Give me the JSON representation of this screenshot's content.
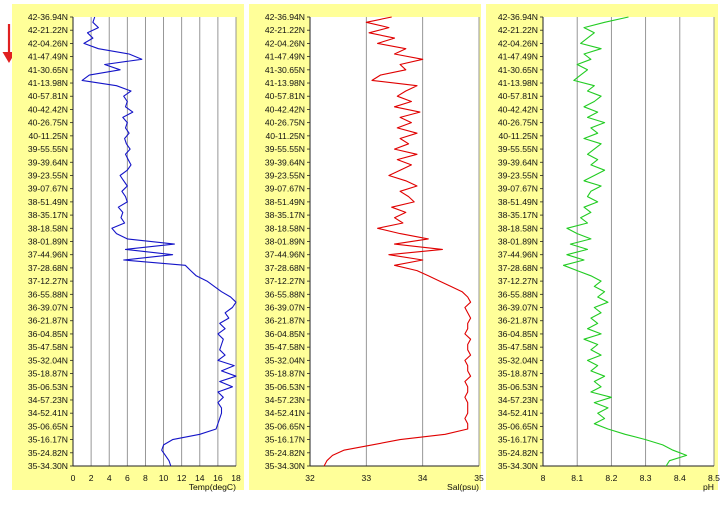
{
  "colors": {
    "panel_background": "#ffff99",
    "grid": "#8c8c8c",
    "arrow": "#e02020",
    "temperature": "#1414c8",
    "salinity": "#e00000",
    "ph": "#22cc22"
  },
  "arrow_icon": "arrow-down-icon",
  "chart_data": [
    {
      "type": "line",
      "orientation": "vertical-profile",
      "xlabel": "Temp(degC)",
      "xlim": [
        0,
        18
      ],
      "xticks": [
        "0",
        "2",
        "4",
        "6",
        "8",
        "10",
        "12",
        "14",
        "16",
        "18"
      ],
      "grid": true,
      "y_tick_labels": [
        "42-36.94N",
        "42-21.22N",
        "42-04.26N",
        "41-47.49N",
        "41-30.65N",
        "41-13.98N",
        "40-57.81N",
        "40-42.42N",
        "40-26.75N",
        "40-11.25N",
        "39-55.55N",
        "39-39.64N",
        "39-23.55N",
        "39-07.67N",
        "38-51.49N",
        "38-35.17N",
        "38-18.58N",
        "38-01.89N",
        "37-44.96N",
        "37-28.68N",
        "37-12.27N",
        "36-55.88N",
        "36-39.07N",
        "36-21.87N",
        "36-04.85N",
        "35-47.58N",
        "35-32.04N",
        "35-18.87N",
        "35-06.53N",
        "34-57.23N",
        "34-52.41N",
        "35-06.65N",
        "35-16.17N",
        "35-24.82N",
        "35-34.30N"
      ],
      "series": [
        {
          "y": [
            0.0,
            0.4,
            0.8,
            1.2,
            1.6,
            2.0,
            2.4,
            2.8,
            3.2,
            3.6,
            4.0,
            4.4,
            4.8,
            5.2,
            5.6,
            6.0,
            6.4,
            6.8,
            7.2,
            7.6,
            8.0,
            8.4,
            8.8,
            9.2,
            9.6,
            10.0,
            10.4,
            10.8,
            11.2,
            11.6,
            12.0,
            12.4,
            12.8,
            13.2,
            13.6,
            14.0,
            14.4,
            14.8,
            15.2,
            15.6,
            16.0,
            16.4,
            16.8,
            17.2,
            17.6,
            18.0,
            18.4,
            18.8,
            19.2,
            19.6,
            20.0,
            20.4,
            20.8,
            21.2,
            21.6,
            22.0,
            22.4,
            22.8,
            23.2,
            23.6,
            24.0,
            24.4,
            24.8,
            25.2,
            25.6,
            26.0,
            26.4,
            26.8,
            27.2,
            27.6,
            28.0,
            28.4,
            28.8,
            29.2,
            29.6,
            30.0,
            30.4,
            30.8,
            31.2,
            31.6,
            32.0,
            32.4,
            32.8,
            33.2,
            33.6,
            34.0
          ],
          "values": [
            2.4,
            2.2,
            2.8,
            1.6,
            2.2,
            1.2,
            2.8,
            6.2,
            7.6,
            3.5,
            5.2,
            1.8,
            1.0,
            4.8,
            6.4,
            5.6,
            6.0,
            5.8,
            6.6,
            5.5,
            6.0,
            5.8,
            6.2,
            5.7,
            5.9,
            6.3,
            5.8,
            6.1,
            6.4,
            6.0,
            5.2,
            5.6,
            6.0,
            5.4,
            5.8,
            6.0,
            5.0,
            5.5,
            5.3,
            5.7,
            4.3,
            4.8,
            6.0,
            11.2,
            5.8,
            11.0,
            5.6,
            12.4,
            13.0,
            13.6,
            14.8,
            15.6,
            16.4,
            17.4,
            18.0,
            17.6,
            16.8,
            17.2,
            16.2,
            16.8,
            16.0,
            16.6,
            16.4,
            16.2,
            16.8,
            16.0,
            17.8,
            16.4,
            18.0,
            16.2,
            17.6,
            16.0,
            16.6,
            16.0,
            16.4,
            16.4,
            16.2,
            16.0,
            15.8,
            14.0,
            11.0,
            10.0,
            9.8,
            10.2,
            10.6,
            10.8
          ]
        }
      ]
    },
    {
      "type": "line",
      "orientation": "vertical-profile",
      "xlabel": "Sal(psu)",
      "xlim": [
        32,
        35
      ],
      "xticks": [
        "32",
        "33",
        "34",
        "35"
      ],
      "grid": true,
      "y_tick_labels": [
        "42-36.94N",
        "42-21.22N",
        "42-04.26N",
        "41-47.49N",
        "41-30.65N",
        "41-13.98N",
        "40-57.81N",
        "40-42.42N",
        "40-26.75N",
        "40-11.25N",
        "39-55.55N",
        "39-39.64N",
        "39-23.55N",
        "39-07.67N",
        "38-51.49N",
        "38-35.17N",
        "38-18.58N",
        "38-01.89N",
        "37-44.96N",
        "37-28.68N",
        "37-12.27N",
        "36-55.88N",
        "36-39.07N",
        "36-21.87N",
        "36-04.85N",
        "35-47.58N",
        "35-32.04N",
        "35-18.87N",
        "35-06.53N",
        "34-57.23N",
        "34-52.41N",
        "35-06.65N",
        "35-16.17N",
        "35-24.82N",
        "35-34.30N"
      ],
      "series": [
        {
          "y": [
            0.0,
            0.4,
            0.8,
            1.2,
            1.6,
            2.0,
            2.4,
            2.8,
            3.2,
            3.6,
            4.0,
            4.4,
            4.8,
            5.2,
            5.6,
            6.0,
            6.4,
            6.8,
            7.2,
            7.6,
            8.0,
            8.4,
            8.8,
            9.2,
            9.6,
            10.0,
            10.4,
            10.8,
            11.2,
            11.6,
            12.0,
            12.4,
            12.8,
            13.2,
            13.6,
            14.0,
            14.4,
            14.8,
            15.2,
            15.6,
            16.0,
            16.4,
            16.8,
            17.2,
            17.6,
            18.0,
            18.4,
            18.8,
            19.2,
            19.6,
            20.0,
            20.4,
            20.8,
            21.2,
            21.6,
            22.0,
            22.4,
            22.8,
            23.2,
            23.6,
            24.0,
            24.4,
            24.8,
            25.2,
            25.6,
            26.0,
            26.4,
            26.8,
            27.2,
            27.6,
            28.0,
            28.4,
            28.8,
            29.2,
            29.6,
            30.0,
            30.4,
            30.8,
            31.2,
            31.6,
            32.0,
            32.4,
            32.8,
            33.2,
            33.6,
            34.0
          ],
          "values": [
            33.45,
            33.0,
            33.4,
            33.05,
            33.5,
            33.2,
            33.7,
            33.5,
            34.0,
            33.6,
            33.7,
            33.25,
            33.1,
            33.9,
            33.7,
            33.55,
            33.8,
            33.5,
            33.95,
            33.6,
            33.8,
            33.55,
            33.9,
            33.6,
            33.75,
            33.5,
            33.9,
            33.55,
            33.8,
            33.6,
            33.4,
            33.7,
            33.9,
            33.6,
            33.75,
            33.85,
            33.45,
            33.7,
            33.5,
            33.65,
            33.2,
            33.6,
            34.1,
            33.5,
            34.35,
            33.4,
            34.0,
            33.5,
            33.9,
            34.1,
            34.3,
            34.5,
            34.7,
            34.8,
            34.85,
            34.75,
            34.8,
            34.85,
            34.8,
            34.8,
            34.75,
            34.85,
            34.8,
            34.8,
            34.85,
            34.75,
            34.8,
            34.8,
            34.85,
            34.75,
            34.8,
            34.8,
            34.75,
            34.8,
            34.8,
            34.8,
            34.75,
            34.8,
            34.8,
            34.4,
            33.6,
            33.1,
            32.6,
            32.4,
            32.3,
            32.25
          ]
        }
      ]
    },
    {
      "type": "line",
      "orientation": "vertical-profile",
      "xlabel": "pH",
      "xlim": [
        8,
        8.5
      ],
      "xticks": [
        "8",
        "8.1",
        "8.2",
        "8.3",
        "8.4",
        "8.5"
      ],
      "grid": true,
      "y_tick_labels": [
        "42-36.94N",
        "42-21.22N",
        "42-04.26N",
        "41-47.49N",
        "41-30.65N",
        "41-13.98N",
        "40-57.81N",
        "40-42.42N",
        "40-26.75N",
        "40-11.25N",
        "39-55.55N",
        "39-39.64N",
        "39-23.55N",
        "39-07.67N",
        "38-51.49N",
        "38-35.17N",
        "38-18.58N",
        "38-01.89N",
        "37-44.96N",
        "37-28.68N",
        "37-12.27N",
        "36-55.88N",
        "36-39.07N",
        "36-21.87N",
        "36-04.85N",
        "35-47.58N",
        "35-32.04N",
        "35-18.87N",
        "35-06.53N",
        "34-57.23N",
        "34-52.41N",
        "35-06.65N",
        "35-16.17N",
        "35-24.82N",
        "35-34.30N"
      ],
      "series": [
        {
          "y": [
            0.0,
            0.4,
            0.8,
            1.2,
            1.6,
            2.0,
            2.4,
            2.8,
            3.2,
            3.6,
            4.0,
            4.4,
            4.8,
            5.2,
            5.6,
            6.0,
            6.4,
            6.8,
            7.2,
            7.6,
            8.0,
            8.4,
            8.8,
            9.2,
            9.6,
            10.0,
            10.4,
            10.8,
            11.2,
            11.6,
            12.0,
            12.4,
            12.8,
            13.2,
            13.6,
            14.0,
            14.4,
            14.8,
            15.2,
            15.6,
            16.0,
            16.4,
            16.8,
            17.2,
            17.6,
            18.0,
            18.4,
            18.8,
            19.2,
            19.6,
            20.0,
            20.4,
            20.8,
            21.2,
            21.6,
            22.0,
            22.4,
            22.8,
            23.2,
            23.6,
            24.0,
            24.4,
            24.8,
            25.2,
            25.6,
            26.0,
            26.4,
            26.8,
            27.2,
            27.6,
            28.0,
            28.4,
            28.8,
            29.2,
            29.6,
            30.0,
            30.4,
            30.8,
            31.2,
            31.6,
            32.0,
            32.4,
            32.8,
            33.2,
            33.6,
            34.0
          ],
          "values": [
            8.25,
            8.18,
            8.12,
            8.15,
            8.13,
            8.11,
            8.17,
            8.12,
            8.14,
            8.1,
            8.13,
            8.11,
            8.09,
            8.15,
            8.13,
            8.17,
            8.15,
            8.12,
            8.16,
            8.13,
            8.18,
            8.14,
            8.16,
            8.12,
            8.17,
            8.15,
            8.13,
            8.16,
            8.14,
            8.18,
            8.15,
            8.12,
            8.17,
            8.14,
            8.13,
            8.16,
            8.12,
            8.14,
            8.11,
            8.13,
            8.07,
            8.1,
            8.14,
            8.08,
            8.13,
            8.07,
            8.12,
            8.06,
            8.1,
            8.14,
            8.17,
            8.15,
            8.18,
            8.16,
            8.19,
            8.15,
            8.17,
            8.14,
            8.16,
            8.13,
            8.17,
            8.12,
            8.16,
            8.14,
            8.17,
            8.13,
            8.16,
            8.14,
            8.18,
            8.15,
            8.17,
            8.14,
            8.2,
            8.15,
            8.19,
            8.16,
            8.18,
            8.15,
            8.19,
            8.24,
            8.3,
            8.35,
            8.38,
            8.42,
            8.37,
            8.36
          ]
        }
      ]
    }
  ]
}
